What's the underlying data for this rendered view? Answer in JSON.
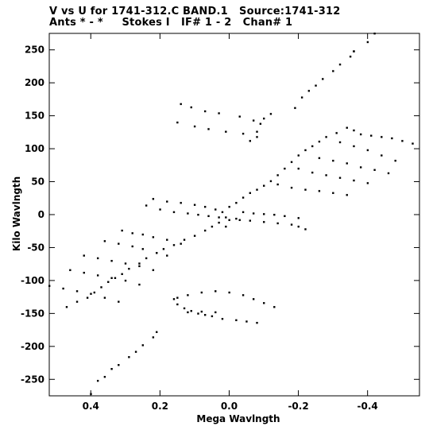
{
  "chart_data": {
    "type": "scatter",
    "title": "V vs U for 1741-312.C BAND.1   Source:1741-312",
    "subtitle": "Ants * - *     Stokes I   IF# 1 - 2   Chan# 1",
    "xlabel": "Mega Wavlngth",
    "ylabel": "Kilo Wavlngth",
    "xlim": [
      0.52,
      -0.55
    ],
    "ylim": [
      -275,
      275
    ],
    "x_ticks": [
      0.4,
      0.2,
      0.0,
      -0.2,
      -0.4
    ],
    "x_tick_labels": [
      "0.4",
      "0.2",
      "0.0",
      "-0.2",
      "-0.4"
    ],
    "y_ticks": [
      -250,
      -200,
      -150,
      -100,
      -50,
      0,
      50,
      100,
      150,
      200,
      250
    ],
    "y_tick_labels": [
      "-250",
      "-200",
      "-150",
      "-100",
      "-50",
      "0",
      "50",
      "100",
      "150",
      "200",
      "250"
    ],
    "grid": false,
    "legend": "none",
    "series": [
      {
        "points": [
          [
            -0.42,
            275
          ],
          [
            -0.4,
            262
          ],
          [
            -0.36,
            248
          ],
          [
            -0.35,
            240
          ],
          [
            -0.32,
            228
          ],
          [
            -0.3,
            218
          ],
          [
            -0.27,
            206
          ],
          [
            -0.25,
            196
          ],
          [
            -0.23,
            188
          ],
          [
            -0.21,
            178
          ],
          [
            -0.19,
            162
          ],
          [
            -0.36,
            248
          ],
          [
            -0.12,
            153
          ],
          [
            -0.1,
            146
          ],
          [
            -0.09,
            138
          ],
          [
            -0.08,
            126
          ],
          [
            -0.06,
            112
          ],
          [
            0.14,
            168
          ],
          [
            0.11,
            163
          ],
          [
            0.07,
            157
          ],
          [
            0.03,
            154
          ],
          [
            -0.03,
            149
          ],
          [
            -0.07,
            143
          ],
          [
            0.15,
            140
          ],
          [
            0.1,
            134
          ],
          [
            0.06,
            130
          ],
          [
            0.01,
            126
          ],
          [
            -0.04,
            123
          ],
          [
            -0.08,
            118
          ],
          [
            -0.53,
            108
          ],
          [
            -0.5,
            112
          ],
          [
            -0.47,
            116
          ],
          [
            -0.44,
            118
          ],
          [
            -0.41,
            120
          ],
          [
            -0.38,
            122
          ],
          [
            -0.36,
            128
          ],
          [
            -0.34,
            132
          ],
          [
            -0.31,
            124
          ],
          [
            -0.28,
            118
          ],
          [
            -0.26,
            111
          ],
          [
            -0.24,
            104
          ],
          [
            -0.22,
            98
          ],
          [
            -0.2,
            90
          ],
          [
            -0.18,
            80
          ],
          [
            -0.16,
            70
          ],
          [
            -0.14,
            60
          ],
          [
            -0.12,
            51
          ],
          [
            -0.1,
            44
          ],
          [
            -0.08,
            38
          ],
          [
            -0.06,
            33
          ],
          [
            -0.04,
            26
          ],
          [
            -0.02,
            18
          ],
          [
            0.0,
            12
          ],
          [
            -0.48,
            82
          ],
          [
            -0.44,
            90
          ],
          [
            -0.4,
            98
          ],
          [
            -0.36,
            104
          ],
          [
            -0.32,
            110
          ],
          [
            -0.46,
            63
          ],
          [
            -0.42,
            68
          ],
          [
            -0.38,
            72
          ],
          [
            -0.34,
            78
          ],
          [
            -0.3,
            82
          ],
          [
            -0.26,
            86
          ],
          [
            -0.4,
            48
          ],
          [
            -0.36,
            52
          ],
          [
            -0.32,
            56
          ],
          [
            -0.28,
            60
          ],
          [
            -0.24,
            64
          ],
          [
            -0.2,
            70
          ],
          [
            -0.34,
            30
          ],
          [
            -0.3,
            33
          ],
          [
            -0.26,
            36
          ],
          [
            -0.22,
            38
          ],
          [
            -0.18,
            41
          ],
          [
            -0.14,
            46
          ],
          [
            -0.22,
            -22
          ],
          [
            -0.2,
            -18
          ],
          [
            -0.18,
            -15
          ],
          [
            -0.14,
            -13
          ],
          [
            -0.1,
            -11
          ],
          [
            -0.06,
            -9
          ],
          [
            -0.02,
            -6
          ],
          [
            0.01,
            -4
          ],
          [
            -0.03,
            -8
          ],
          [
            -0.2,
            -5
          ],
          [
            -0.16,
            -2
          ],
          [
            -0.13,
            0
          ],
          [
            -0.1,
            1
          ],
          [
            -0.07,
            2
          ],
          [
            -0.04,
            4
          ],
          [
            0.22,
            24
          ],
          [
            0.18,
            20
          ],
          [
            0.14,
            18
          ],
          [
            0.1,
            15
          ],
          [
            0.07,
            12
          ],
          [
            0.04,
            8
          ],
          [
            0.02,
            4
          ],
          [
            0.24,
            14
          ],
          [
            0.2,
            8
          ],
          [
            0.16,
            4
          ],
          [
            0.12,
            2
          ],
          [
            0.09,
            0
          ],
          [
            0.06,
            -2
          ],
          [
            0.03,
            -4
          ],
          [
            0.0,
            -8
          ],
          [
            0.01,
            -18
          ],
          [
            0.03,
            -12
          ],
          [
            0.05,
            -18
          ],
          [
            0.07,
            -24
          ],
          [
            0.1,
            -32
          ],
          [
            0.13,
            -38
          ],
          [
            0.16,
            -46
          ],
          [
            0.19,
            -52
          ],
          [
            0.21,
            -58
          ],
          [
            0.24,
            -66
          ],
          [
            0.26,
            -74
          ],
          [
            0.29,
            -82
          ],
          [
            0.31,
            -90
          ],
          [
            0.33,
            -96
          ],
          [
            0.35,
            -102
          ],
          [
            0.37,
            -110
          ],
          [
            0.39,
            -118
          ],
          [
            0.41,
            -126
          ],
          [
            0.44,
            -132
          ],
          [
            0.47,
            -140
          ],
          [
            0.31,
            -24
          ],
          [
            0.28,
            -28
          ],
          [
            0.25,
            -30
          ],
          [
            0.22,
            -34
          ],
          [
            0.18,
            -38
          ],
          [
            0.14,
            -44
          ],
          [
            0.36,
            -40
          ],
          [
            0.32,
            -44
          ],
          [
            0.28,
            -48
          ],
          [
            0.25,
            -52
          ],
          [
            0.21,
            -58
          ],
          [
            0.18,
            -62
          ],
          [
            0.42,
            -62
          ],
          [
            0.38,
            -66
          ],
          [
            0.34,
            -70
          ],
          [
            0.3,
            -74
          ],
          [
            0.26,
            -78
          ],
          [
            0.22,
            -84
          ],
          [
            0.46,
            -84
          ],
          [
            0.42,
            -88
          ],
          [
            0.38,
            -92
          ],
          [
            0.34,
            -96
          ],
          [
            0.3,
            -100
          ],
          [
            0.26,
            -106
          ],
          [
            0.52,
            -108
          ],
          [
            0.48,
            -112
          ],
          [
            0.44,
            -116
          ],
          [
            0.4,
            -120
          ],
          [
            0.36,
            -126
          ],
          [
            0.32,
            -132
          ],
          [
            0.16,
            -128
          ],
          [
            0.15,
            -136
          ],
          [
            0.13,
            -142
          ],
          [
            0.11,
            -146
          ],
          [
            0.09,
            -150
          ],
          [
            0.07,
            -152
          ],
          [
            0.05,
            -154
          ],
          [
            0.02,
            -158
          ],
          [
            -0.02,
            -160
          ],
          [
            -0.05,
            -162
          ],
          [
            -0.08,
            -164
          ],
          [
            0.15,
            -126
          ],
          [
            0.12,
            -122
          ],
          [
            0.08,
            -118
          ],
          [
            0.04,
            -116
          ],
          [
            0.0,
            -118
          ],
          [
            -0.04,
            -122
          ],
          [
            -0.07,
            -128
          ],
          [
            -0.1,
            -134
          ],
          [
            -0.13,
            -140
          ],
          [
            0.12,
            -148
          ],
          [
            0.08,
            -147
          ],
          [
            0.04,
            -148
          ],
          [
            0.21,
            -178
          ],
          [
            0.22,
            -186
          ],
          [
            0.25,
            -198
          ],
          [
            0.27,
            -208
          ],
          [
            0.29,
            -216
          ],
          [
            0.32,
            -228
          ],
          [
            0.34,
            -234
          ],
          [
            0.36,
            -246
          ],
          [
            0.38,
            -252
          ],
          [
            0.4,
            -272
          ]
        ]
      }
    ]
  }
}
